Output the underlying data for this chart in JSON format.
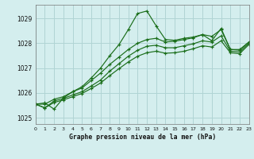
{
  "background_color": "#d4eeee",
  "grid_color": "#b0d4d4",
  "line_color": "#1a6e1a",
  "title": "Graphe pression niveau de la mer (hPa)",
  "xlim": [
    0,
    23
  ],
  "ylim": [
    1024.75,
    1029.55
  ],
  "xticks": [
    0,
    1,
    2,
    3,
    4,
    5,
    6,
    7,
    8,
    9,
    10,
    11,
    12,
    13,
    14,
    15,
    16,
    17,
    18,
    19,
    20,
    21,
    22,
    23
  ],
  "yticks": [
    1025,
    1026,
    1027,
    1028,
    1029
  ],
  "series": [
    [
      1025.55,
      1025.6,
      1025.35,
      1025.8,
      1026.05,
      1026.25,
      1026.6,
      1027.0,
      1027.5,
      1027.95,
      1028.55,
      1029.2,
      1029.3,
      1028.7,
      1028.15,
      1028.12,
      1028.2,
      1028.25,
      1028.35,
      1028.1,
      1028.6,
      1027.75,
      1027.75,
      1028.05
    ],
    [
      1025.55,
      1025.55,
      1025.75,
      1025.85,
      1026.05,
      1026.2,
      1026.5,
      1026.8,
      1027.15,
      1027.45,
      1027.75,
      1028.0,
      1028.15,
      1028.2,
      1028.05,
      1028.08,
      1028.15,
      1028.22,
      1028.35,
      1028.28,
      1028.55,
      1027.75,
      1027.72,
      1028.05
    ],
    [
      1025.55,
      1025.4,
      1025.68,
      1025.78,
      1025.92,
      1026.05,
      1026.28,
      1026.52,
      1026.88,
      1027.18,
      1027.48,
      1027.72,
      1027.88,
      1027.92,
      1027.82,
      1027.82,
      1027.9,
      1027.98,
      1028.1,
      1028.05,
      1028.3,
      1027.68,
      1027.65,
      1028.0
    ],
    [
      1025.55,
      1025.4,
      1025.62,
      1025.72,
      1025.85,
      1025.98,
      1026.18,
      1026.4,
      1026.7,
      1026.98,
      1027.25,
      1027.48,
      1027.62,
      1027.68,
      1027.6,
      1027.62,
      1027.68,
      1027.78,
      1027.9,
      1027.85,
      1028.1,
      1027.62,
      1027.58,
      1027.95
    ]
  ]
}
